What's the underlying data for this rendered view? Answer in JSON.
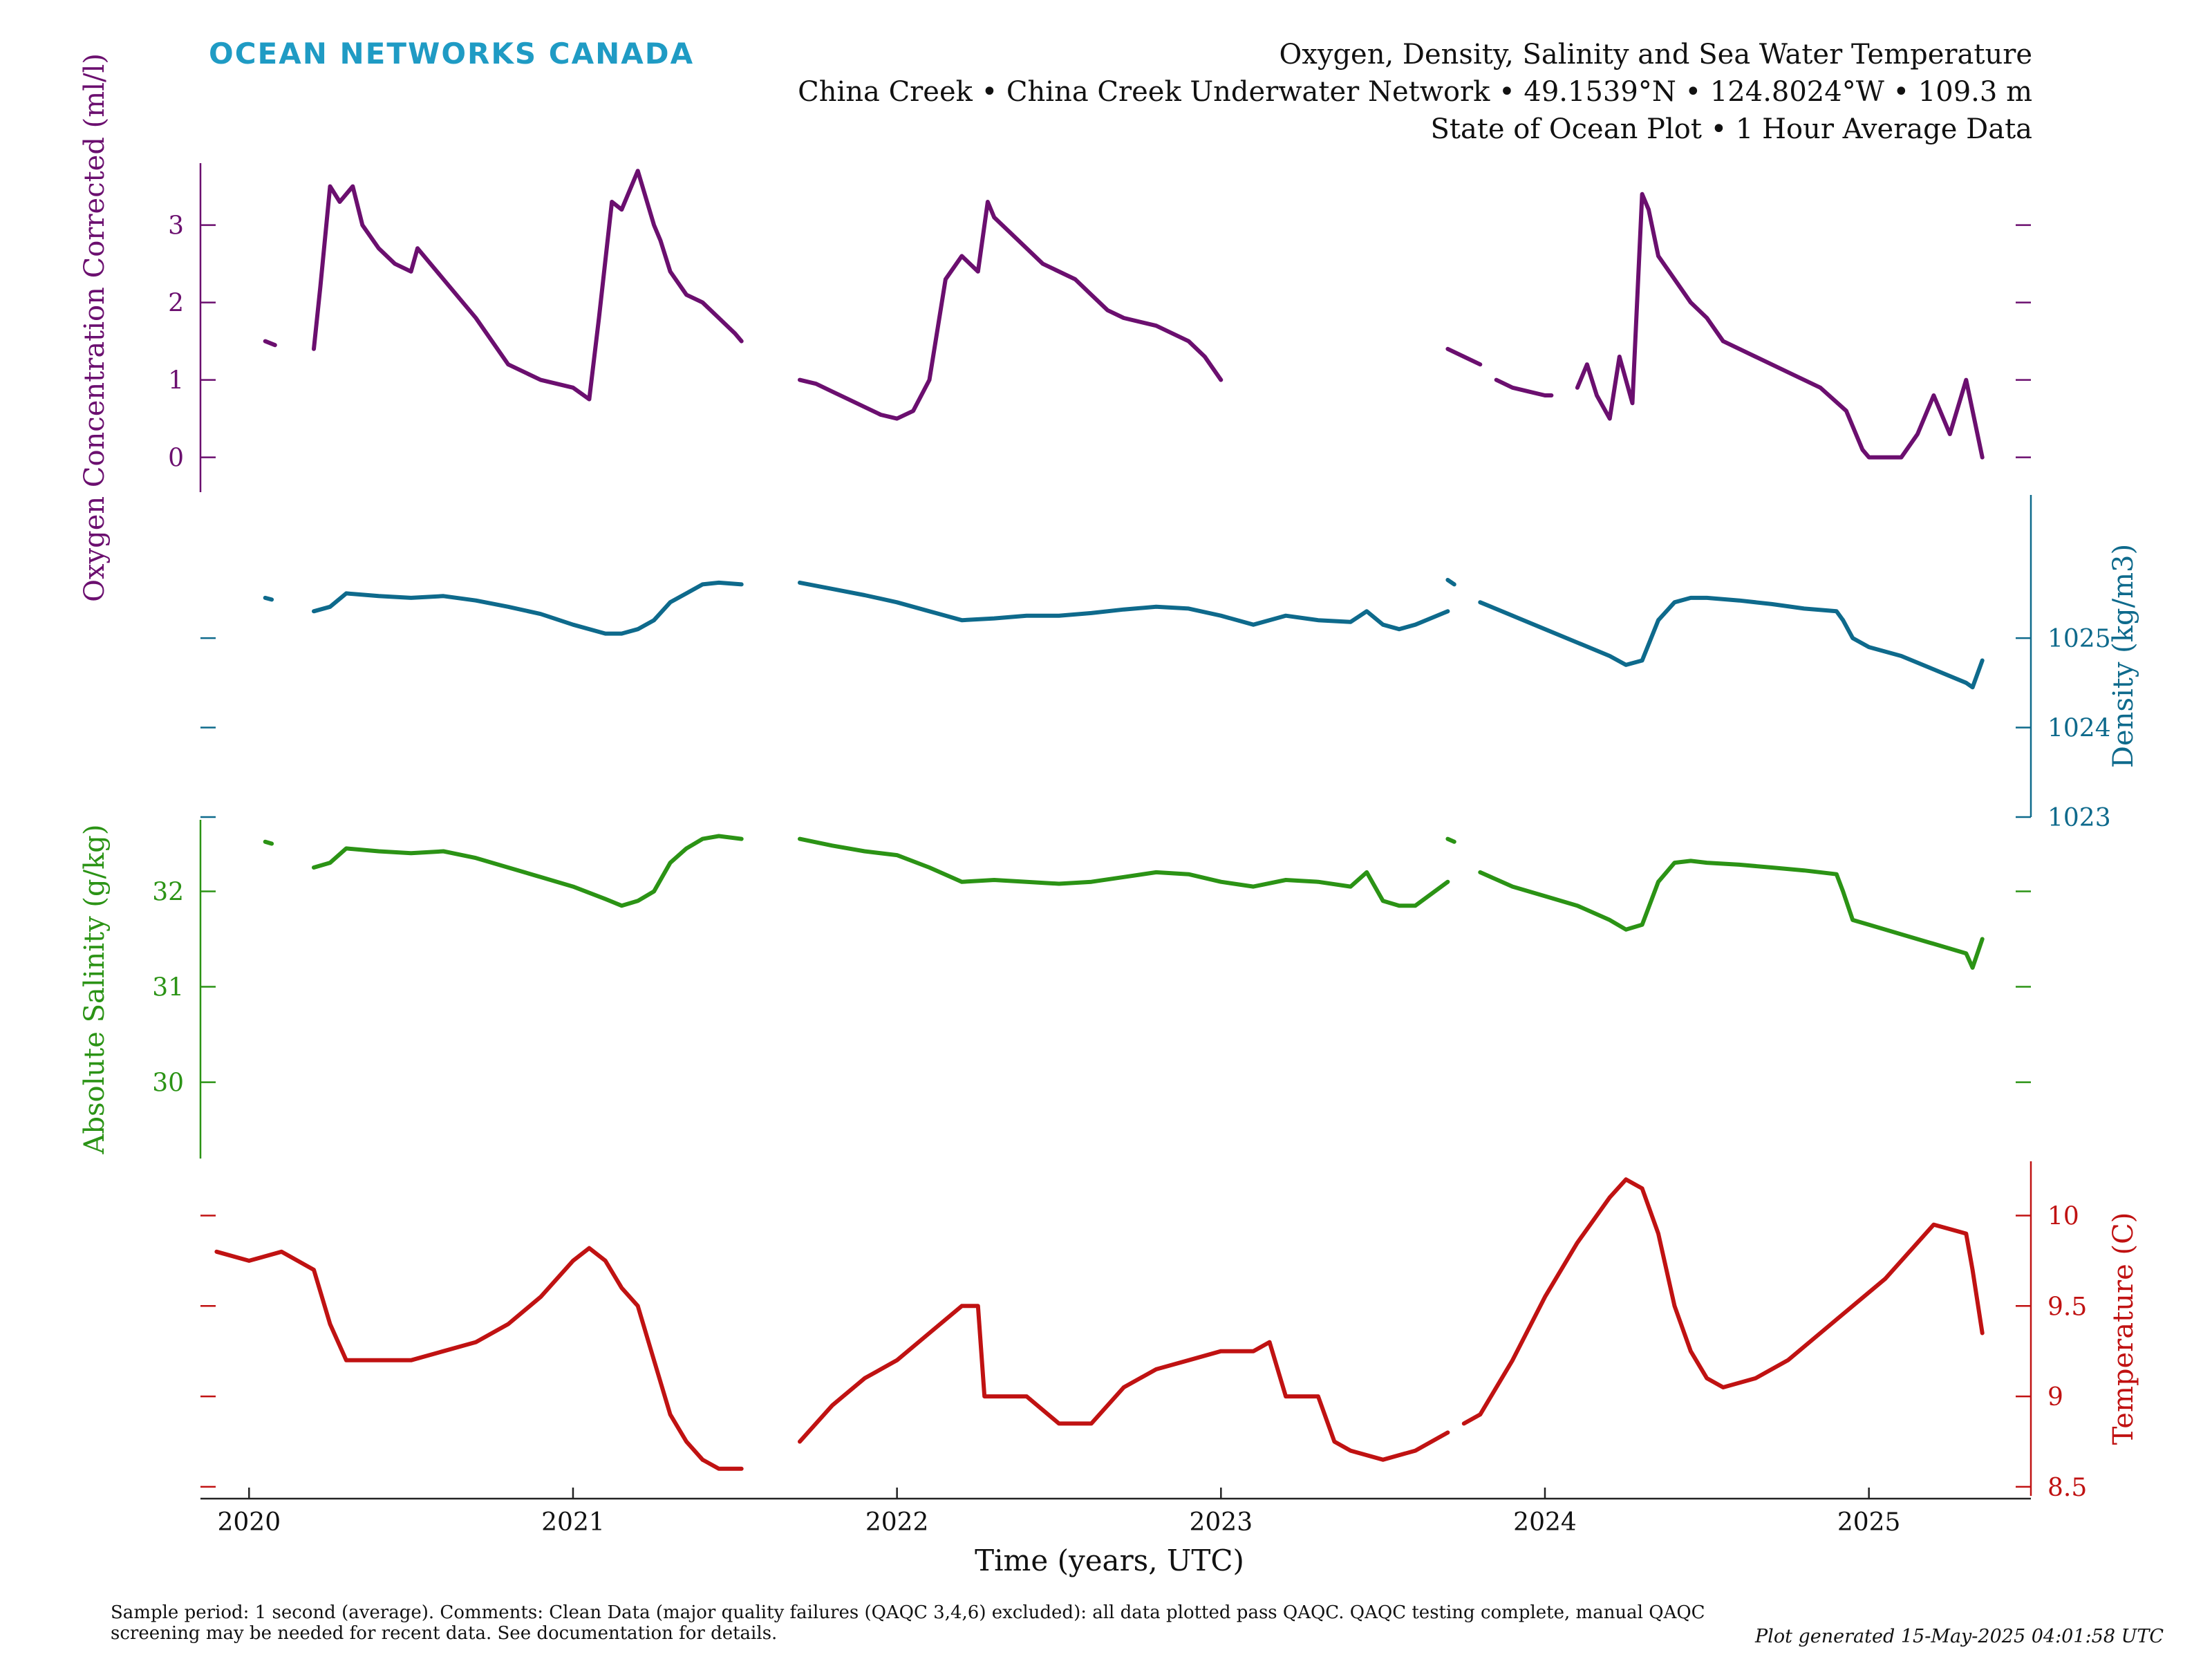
{
  "branding": {
    "name": "OCEAN NETWORKS CANADA"
  },
  "header": {
    "title": "Oxygen, Density, Salinity and Sea Water Temperature",
    "subtitle": "China Creek • China Creek Underwater Network • 49.1539°N • 124.8024°W • 109.3 m",
    "subtitle2": "State of Ocean Plot • 1 Hour Average Data"
  },
  "colors": {
    "brand": "#1f9bc4",
    "oxygen": "#6b0f6f",
    "density": "#0e6a8c",
    "salinity": "#2b9315",
    "temperature": "#c01212",
    "axis": "#222222"
  },
  "footer": {
    "note": "Sample period: 1 second (average). Comments: Clean Data (major quality failures (QAQC 3,4,6) excluded): all data plotted pass QAQC. QAQC testing complete, manual QAQC screening may be needed for recent data. See documentation for details.",
    "generated": "Plot generated 15-May-2025 04:01:58 UTC"
  },
  "chart_data": {
    "type": "line",
    "xlabel": "Time (years, UTC)",
    "xlim": [
      2019.85,
      2025.5
    ],
    "x_ticks": [
      2020,
      2021,
      2022,
      2023,
      2024,
      2025
    ],
    "grid": false,
    "legend": "none",
    "panels": [
      {
        "name": "oxygen",
        "ylabel": "Oxygen Concentration Corrected (ml/l)",
        "axis_side": "left",
        "ylim": [
          -0.45,
          3.8
        ],
        "y_ticks": [
          0,
          1,
          2,
          3
        ],
        "segments": [
          {
            "x": [
              2020.05,
              2020.08
            ],
            "y": [
              1.5,
              1.45
            ]
          },
          {
            "x": [
              2020.2,
              2020.22,
              2020.25,
              2020.28,
              2020.32,
              2020.35,
              2020.4,
              2020.45,
              2020.5,
              2020.52,
              2020.6,
              2020.7,
              2020.8,
              2020.9,
              2021.0,
              2021.05,
              2021.08,
              2021.12,
              2021.15,
              2021.2,
              2021.25,
              2021.27,
              2021.3,
              2021.35,
              2021.4,
              2021.45,
              2021.5,
              2021.52
            ],
            "y": [
              1.4,
              2.2,
              3.5,
              3.3,
              3.5,
              3.0,
              2.7,
              2.5,
              2.4,
              2.7,
              2.3,
              1.8,
              1.2,
              1.0,
              0.9,
              0.75,
              1.8,
              3.3,
              3.2,
              3.7,
              3.0,
              2.8,
              2.4,
              2.1,
              2.0,
              1.8,
              1.6,
              1.5
            ]
          },
          {
            "x": [
              2021.7,
              2021.75,
              2021.8,
              2021.85,
              2021.9,
              2021.95,
              2022.0,
              2022.05,
              2022.1,
              2022.15,
              2022.2,
              2022.25,
              2022.28,
              2022.3,
              2022.35,
              2022.4,
              2022.45,
              2022.55,
              2022.6,
              2022.65,
              2022.7,
              2022.8,
              2022.9,
              2022.95,
              2023.0
            ],
            "y": [
              1.0,
              0.95,
              0.85,
              0.75,
              0.65,
              0.55,
              0.5,
              0.6,
              1.0,
              2.3,
              2.6,
              2.4,
              3.3,
              3.1,
              2.9,
              2.7,
              2.5,
              2.3,
              2.1,
              1.9,
              1.8,
              1.7,
              1.5,
              1.3,
              1.0
            ]
          },
          {
            "x": [
              2023.7,
              2023.75,
              2023.8
            ],
            "y": [
              1.4,
              1.3,
              1.2
            ]
          },
          {
            "x": [
              2023.85,
              2023.9,
              2023.95,
              2024.0,
              2024.02
            ],
            "y": [
              1.0,
              0.9,
              0.85,
              0.8,
              0.8
            ]
          },
          {
            "x": [
              2024.1,
              2024.13,
              2024.16,
              2024.2,
              2024.23,
              2024.27,
              2024.3,
              2024.32,
              2024.35,
              2024.4,
              2024.45,
              2024.5,
              2024.55,
              2024.65,
              2024.75,
              2024.85,
              2024.93,
              2024.98,
              2025.0,
              2025.05,
              2025.1,
              2025.15,
              2025.2,
              2025.25,
              2025.3,
              2025.35
            ],
            "y": [
              0.9,
              1.2,
              0.8,
              0.5,
              1.3,
              0.7,
              3.4,
              3.2,
              2.6,
              2.3,
              2.0,
              1.8,
              1.5,
              1.3,
              1.1,
              0.9,
              0.6,
              0.1,
              0.0,
              0.0,
              0.0,
              0.3,
              0.8,
              0.3,
              1.0,
              0.0
            ]
          }
        ]
      },
      {
        "name": "density",
        "ylabel": "Density (kg/m3)",
        "axis_side": "right",
        "ylim": [
          1023,
          1026.6
        ],
        "y_ticks": [
          1023,
          1024,
          1025
        ],
        "segments": [
          {
            "x": [
              2020.05,
              2020.07
            ],
            "y": [
              1025.45,
              1025.43
            ]
          },
          {
            "x": [
              2020.2,
              2020.25,
              2020.3,
              2020.4,
              2020.5,
              2020.6,
              2020.7,
              2020.8,
              2020.9,
              2021.0,
              2021.1,
              2021.15,
              2021.2,
              2021.25,
              2021.3,
              2021.35,
              2021.4,
              2021.45,
              2021.52
            ],
            "y": [
              1025.3,
              1025.35,
              1025.5,
              1025.47,
              1025.45,
              1025.47,
              1025.42,
              1025.35,
              1025.27,
              1025.15,
              1025.05,
              1025.05,
              1025.1,
              1025.2,
              1025.4,
              1025.5,
              1025.6,
              1025.62,
              1025.6
            ]
          },
          {
            "x": [
              2021.7,
              2021.8,
              2021.9,
              2022.0,
              2022.1,
              2022.2,
              2022.3,
              2022.4,
              2022.5,
              2022.6,
              2022.7,
              2022.8,
              2022.9,
              2023.0,
              2023.1,
              2023.2,
              2023.3,
              2023.4,
              2023.45,
              2023.5,
              2023.55,
              2023.6,
              2023.7
            ],
            "y": [
              1025.62,
              1025.55,
              1025.48,
              1025.4,
              1025.3,
              1025.2,
              1025.22,
              1025.25,
              1025.25,
              1025.28,
              1025.32,
              1025.35,
              1025.33,
              1025.25,
              1025.15,
              1025.25,
              1025.2,
              1025.18,
              1025.3,
              1025.15,
              1025.1,
              1025.15,
              1025.3
            ]
          },
          {
            "x": [
              2023.7,
              2023.72
            ],
            "y": [
              1025.65,
              1025.6
            ]
          },
          {
            "x": [
              2023.8,
              2023.9,
              2024.0,
              2024.1,
              2024.2,
              2024.25,
              2024.3,
              2024.35,
              2024.4,
              2024.45,
              2024.5,
              2024.6,
              2024.7,
              2024.8,
              2024.9,
              2024.92,
              2024.95,
              2025.0,
              2025.1,
              2025.2,
              2025.3,
              2025.32,
              2025.35
            ],
            "y": [
              1025.4,
              1025.25,
              1025.1,
              1024.95,
              1024.8,
              1024.7,
              1024.75,
              1025.2,
              1025.4,
              1025.45,
              1025.45,
              1025.42,
              1025.38,
              1025.33,
              1025.3,
              1025.2,
              1025.0,
              1024.9,
              1024.8,
              1024.65,
              1024.5,
              1024.45,
              1024.75
            ]
          }
        ]
      },
      {
        "name": "salinity",
        "ylabel": "Absolute Salinity (g/kg)",
        "axis_side": "left",
        "ylim": [
          29.2,
          32.75
        ],
        "y_ticks": [
          30,
          31,
          32
        ],
        "segments": [
          {
            "x": [
              2020.05,
              2020.07
            ],
            "y": [
              32.52,
              32.5
            ]
          },
          {
            "x": [
              2020.2,
              2020.25,
              2020.3,
              2020.4,
              2020.5,
              2020.6,
              2020.7,
              2020.8,
              2020.9,
              2021.0,
              2021.1,
              2021.15,
              2021.2,
              2021.25,
              2021.3,
              2021.35,
              2021.4,
              2021.45,
              2021.52
            ],
            "y": [
              32.25,
              32.3,
              32.45,
              32.42,
              32.4,
              32.42,
              32.35,
              32.25,
              32.15,
              32.05,
              31.92,
              31.85,
              31.9,
              32.0,
              32.3,
              32.45,
              32.55,
              32.58,
              32.55
            ]
          },
          {
            "x": [
              2021.7,
              2021.8,
              2021.9,
              2022.0,
              2022.1,
              2022.2,
              2022.3,
              2022.4,
              2022.5,
              2022.6,
              2022.7,
              2022.8,
              2022.9,
              2023.0,
              2023.1,
              2023.2,
              2023.3,
              2023.4,
              2023.45,
              2023.5,
              2023.55,
              2023.6,
              2023.7
            ],
            "y": [
              32.55,
              32.48,
              32.42,
              32.38,
              32.25,
              32.1,
              32.12,
              32.1,
              32.08,
              32.1,
              32.15,
              32.2,
              32.18,
              32.1,
              32.05,
              32.12,
              32.1,
              32.05,
              32.2,
              31.9,
              31.85,
              31.85,
              32.1
            ]
          },
          {
            "x": [
              2023.7,
              2023.72
            ],
            "y": [
              32.55,
              32.52
            ]
          },
          {
            "x": [
              2023.8,
              2023.9,
              2024.0,
              2024.1,
              2024.2,
              2024.25,
              2024.3,
              2024.35,
              2024.4,
              2024.45,
              2024.5,
              2024.6,
              2024.7,
              2024.8,
              2024.9,
              2024.92,
              2024.95,
              2025.0,
              2025.1,
              2025.2,
              2025.3,
              2025.32,
              2025.35
            ],
            "y": [
              32.2,
              32.05,
              31.95,
              31.85,
              31.7,
              31.6,
              31.65,
              32.1,
              32.3,
              32.32,
              32.3,
              32.28,
              32.25,
              32.22,
              32.18,
              32.0,
              31.7,
              31.65,
              31.55,
              31.45,
              31.35,
              31.2,
              31.5
            ]
          }
        ]
      },
      {
        "name": "temperature",
        "ylabel": "Temperature (C)",
        "axis_side": "right",
        "ylim": [
          8.45,
          10.3
        ],
        "y_ticks": [
          8.5,
          9,
          9.5,
          10
        ],
        "segments": [
          {
            "x": [
              2019.9,
              2020.0,
              2020.1,
              2020.15,
              2020.2,
              2020.25,
              2020.3,
              2020.4,
              2020.5,
              2020.6,
              2020.7,
              2020.8,
              2020.9,
              2021.0,
              2021.05,
              2021.1,
              2021.15,
              2021.2,
              2021.25,
              2021.3,
              2021.35,
              2021.4,
              2021.45,
              2021.52
            ],
            "y": [
              9.8,
              9.75,
              9.8,
              9.75,
              9.7,
              9.4,
              9.2,
              9.2,
              9.2,
              9.25,
              9.3,
              9.4,
              9.55,
              9.75,
              9.82,
              9.75,
              9.6,
              9.5,
              9.2,
              8.9,
              8.75,
              8.65,
              8.6,
              8.6
            ]
          },
          {
            "x": [
              2021.7,
              2021.8,
              2021.9,
              2022.0,
              2022.1,
              2022.2,
              2022.25,
              2022.27,
              2022.3,
              2022.4,
              2022.5,
              2022.6,
              2022.7,
              2022.8,
              2022.9,
              2023.0,
              2023.1,
              2023.15,
              2023.2,
              2023.3,
              2023.35,
              2023.4,
              2023.5,
              2023.6,
              2023.7
            ],
            "y": [
              8.75,
              8.95,
              9.1,
              9.2,
              9.35,
              9.5,
              9.5,
              9.0,
              9.0,
              9.0,
              8.85,
              8.85,
              9.05,
              9.15,
              9.2,
              9.25,
              9.25,
              9.3,
              9.0,
              9.0,
              8.75,
              8.7,
              8.65,
              8.7,
              8.8
            ]
          },
          {
            "x": [
              2023.75,
              2023.8,
              2023.9,
              2024.0,
              2024.1,
              2024.2,
              2024.25,
              2024.3,
              2024.35,
              2024.4,
              2024.45,
              2024.5,
              2024.55,
              2024.65,
              2024.75,
              2024.85,
              2024.95,
              2025.05,
              2025.15,
              2025.2,
              2025.3,
              2025.32,
              2025.35
            ],
            "y": [
              8.85,
              8.9,
              9.2,
              9.55,
              9.85,
              10.1,
              10.2,
              10.15,
              9.9,
              9.5,
              9.25,
              9.1,
              9.05,
              9.1,
              9.2,
              9.35,
              9.5,
              9.65,
              9.85,
              9.95,
              9.9,
              9.7,
              9.35
            ]
          }
        ]
      }
    ]
  }
}
